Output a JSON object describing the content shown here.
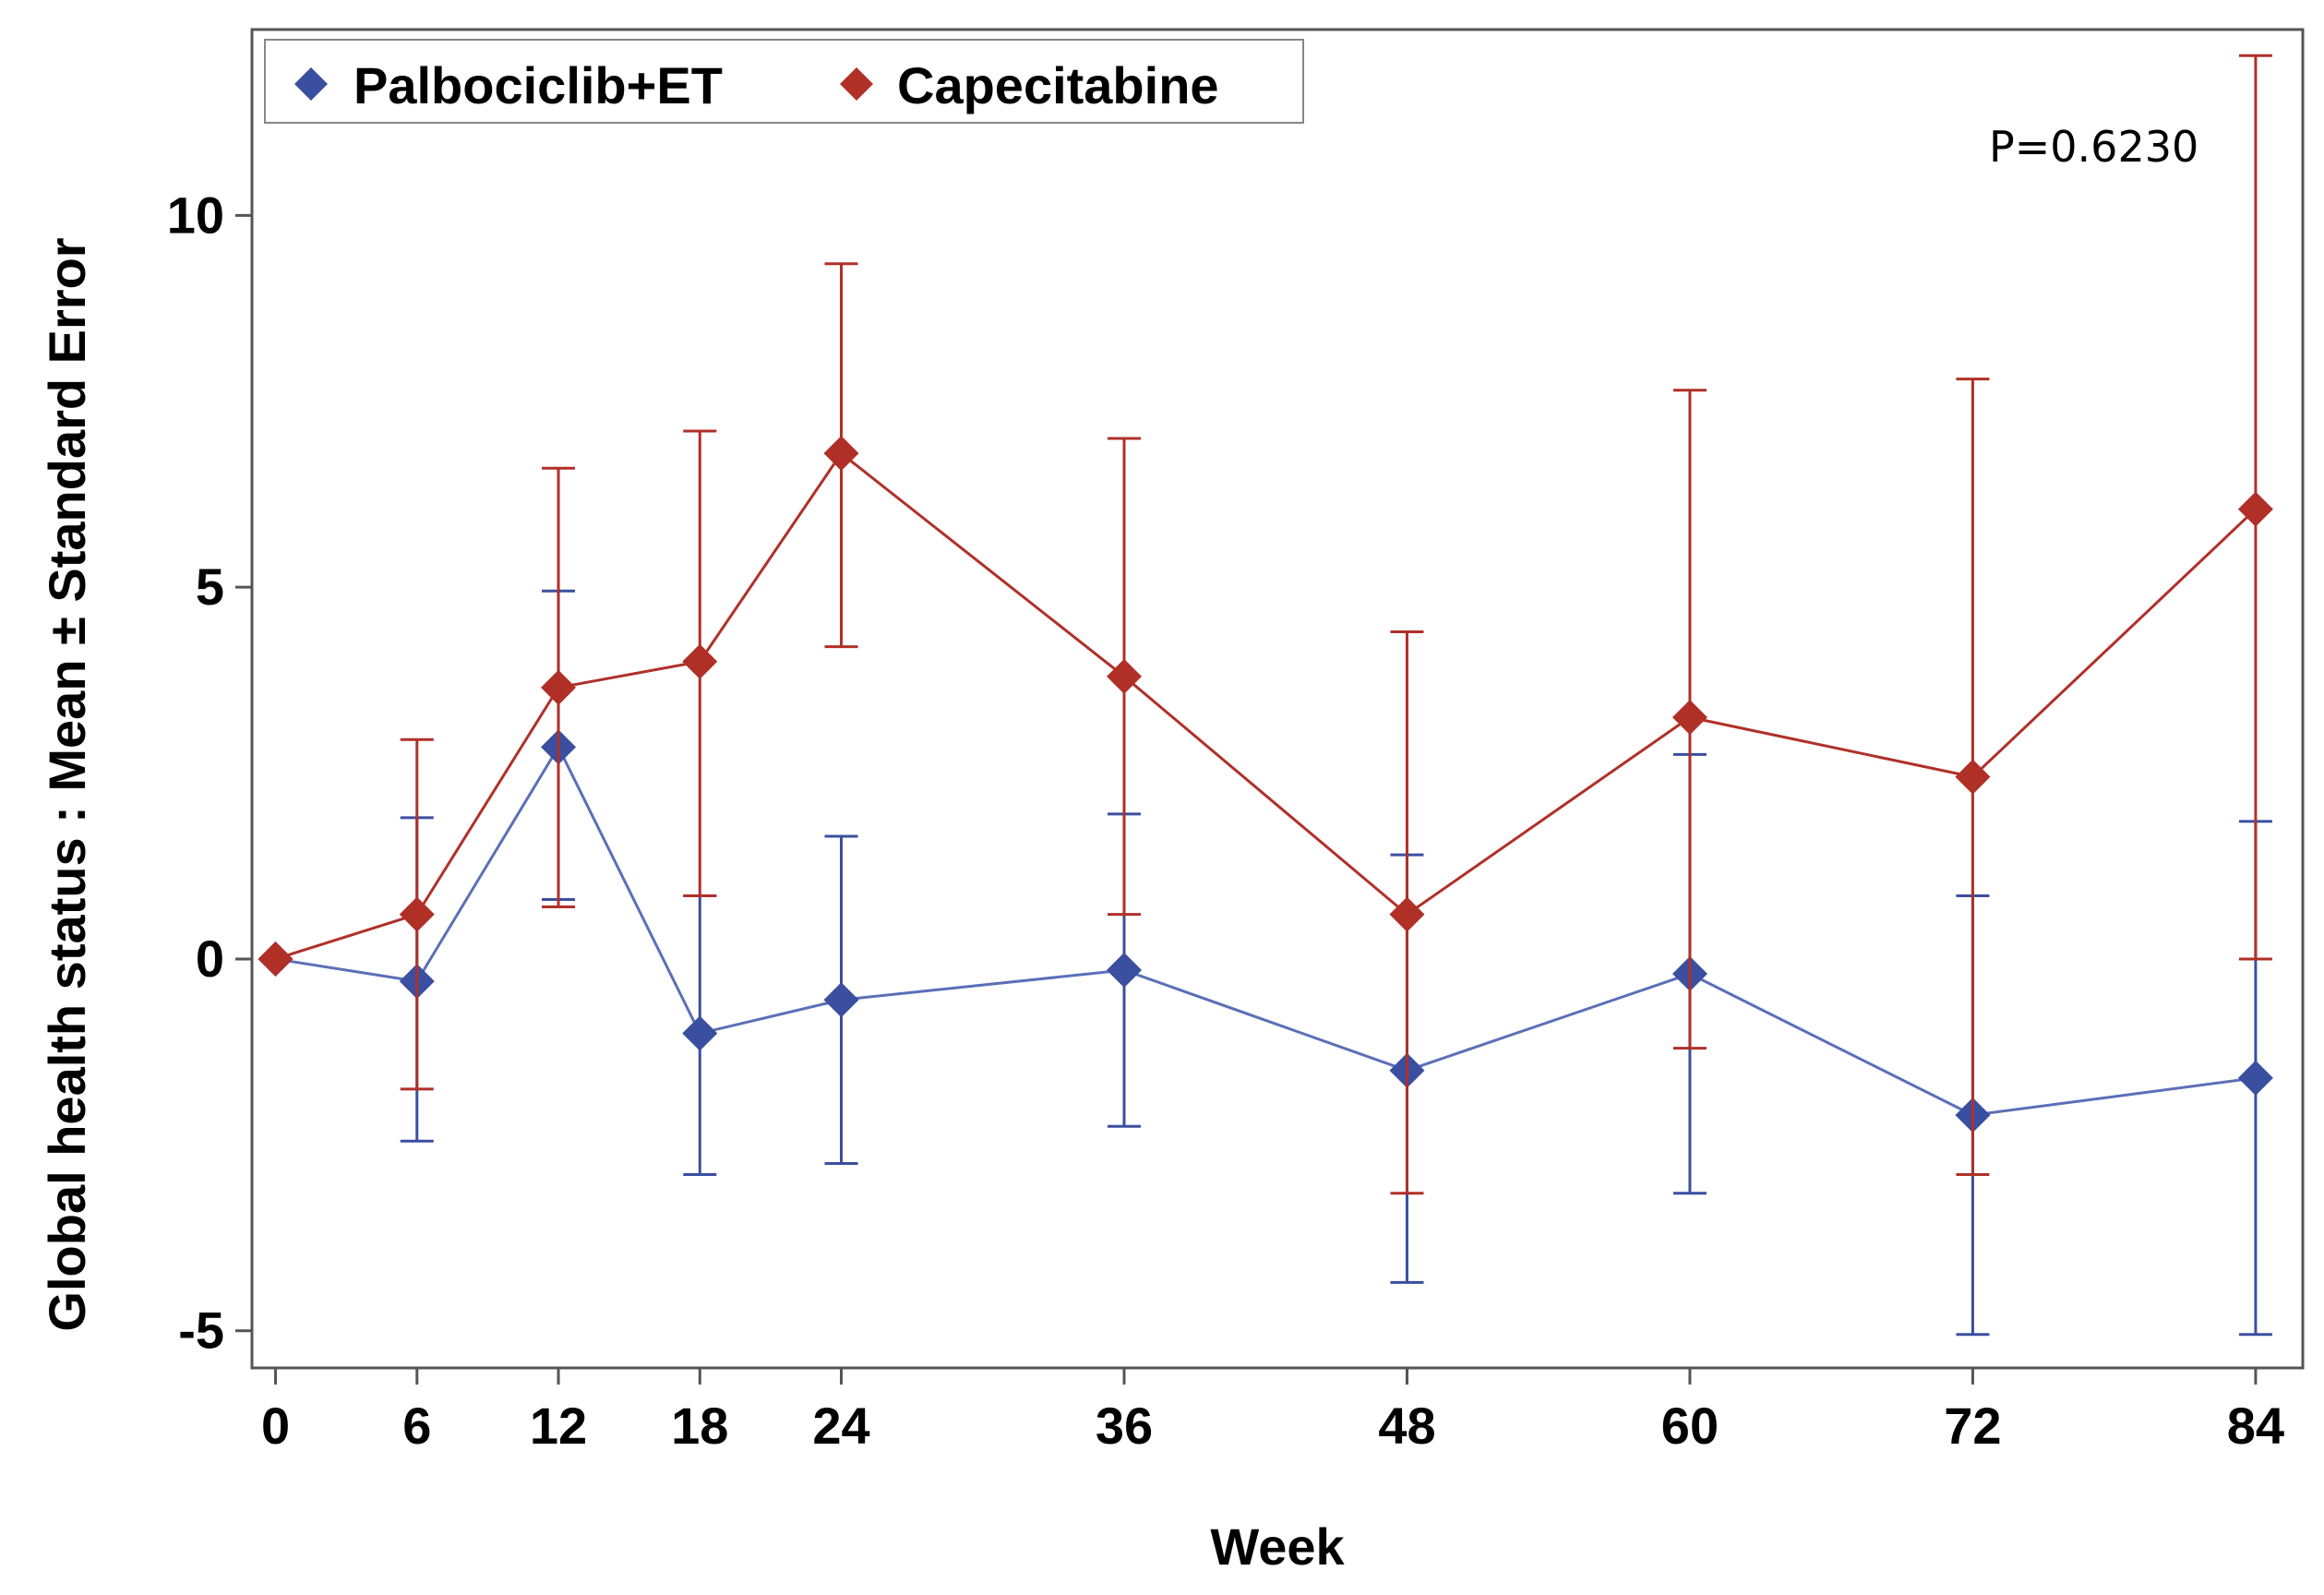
{
  "chart_data": {
    "type": "line",
    "x": [
      0,
      6,
      12,
      18,
      24,
      36,
      48,
      60,
      72,
      84
    ],
    "xlabel": "Week",
    "ylabel": "Global health status : Mean ± Standard Error",
    "xlim": [
      -1,
      86
    ],
    "ylim": [
      -5.5,
      12.5
    ],
    "x_ticks": [
      0,
      6,
      12,
      18,
      24,
      36,
      48,
      60,
      72,
      84
    ],
    "y_ticks": [
      -5,
      0,
      5,
      10
    ],
    "grid": false,
    "legend_position": "top-left",
    "annotation": "P=0.6230",
    "series": [
      {
        "name": "Palbociclib+ET",
        "color": "#3a4fa0",
        "line_color": "#5b6fb8",
        "marker": "diamond",
        "values": [
          0,
          -0.3,
          2.85,
          -1.0,
          -0.55,
          -0.15,
          -1.5,
          -0.2,
          -2.1,
          -1.6
        ],
        "lower": [
          0,
          -2.45,
          0.8,
          -2.9,
          -2.75,
          -2.25,
          -4.35,
          -3.15,
          -5.05,
          -5.05
        ],
        "upper": [
          0,
          1.9,
          4.95,
          0.85,
          1.65,
          1.95,
          1.4,
          2.75,
          0.85,
          1.85
        ]
      },
      {
        "name": "Capecitabine",
        "color": "#b03028",
        "line_color": "#b03028",
        "marker": "diamond",
        "values": [
          0,
          0.6,
          3.65,
          4.0,
          6.8,
          3.8,
          0.6,
          3.25,
          2.45,
          6.05
        ],
        "lower": [
          0,
          -1.75,
          0.7,
          0.85,
          4.2,
          0.6,
          -3.15,
          -1.2,
          -2.9,
          0.0
        ],
        "upper": [
          0,
          2.95,
          6.6,
          7.1,
          9.35,
          7.0,
          4.4,
          7.65,
          7.8,
          12.15
        ]
      }
    ]
  }
}
